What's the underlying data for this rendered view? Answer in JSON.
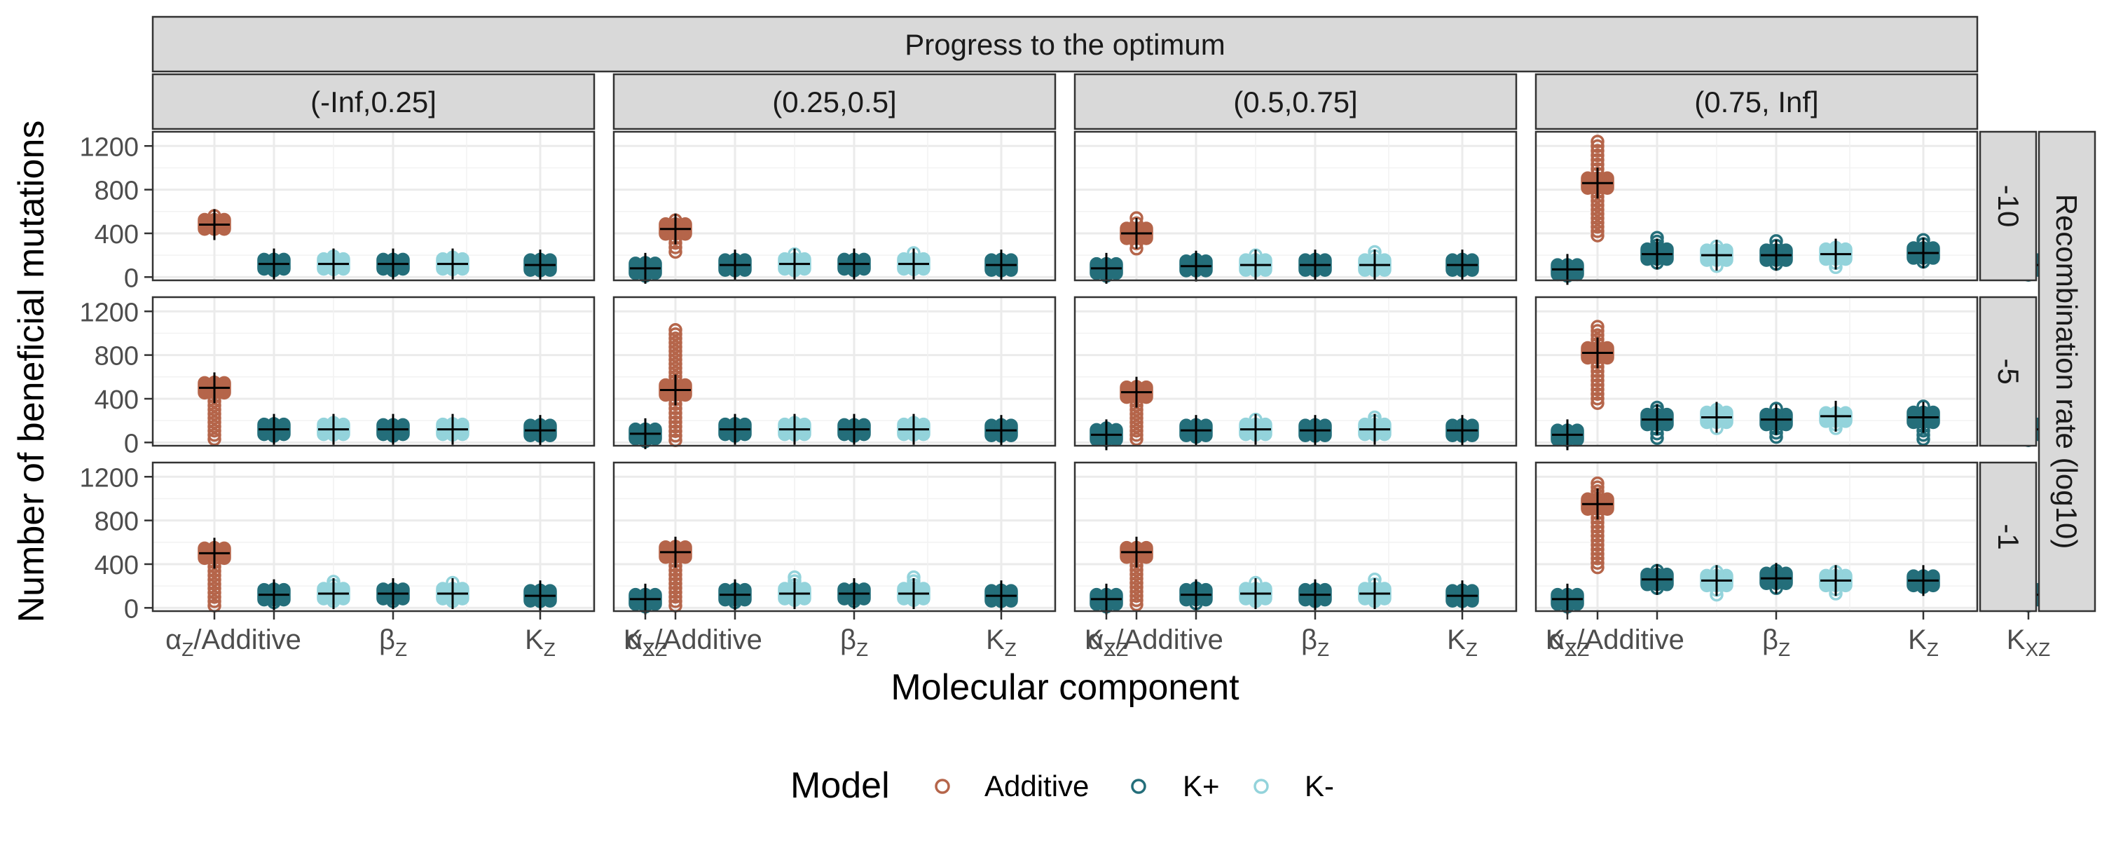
{
  "chart_data": {
    "type": "scatter",
    "title": "Progress to the optimum",
    "xlabel": "Molecular component",
    "ylabel": "Number of beneficial mutations",
    "row_strip_title": "Recombination rate (log10)",
    "column_facets": [
      "(-Inf,0.25]",
      "(0.25,0.5]",
      "(0.5,0.75]",
      "(0.75, Inf]"
    ],
    "row_facets": [
      "-10",
      "-5",
      "-1"
    ],
    "x_tick_labels": [
      {
        "base": "α",
        "sub": "Z",
        "suffix": "/Additive"
      },
      {
        "base": "β",
        "sub": "Z",
        "suffix": ""
      },
      {
        "base": "K",
        "sub": "Z",
        "suffix": ""
      },
      {
        "base": "K",
        "sub": "XZ",
        "suffix": ""
      }
    ],
    "y_ticks": [
      "0",
      "400",
      "800",
      "1200"
    ],
    "ylim": [
      -30,
      1330
    ],
    "grid": true,
    "legend": {
      "title": "Model",
      "placement": "bottom",
      "items": [
        {
          "label": "Additive",
          "color": "#B5654A"
        },
        {
          "label": "K+",
          "color": "#246E7A"
        },
        {
          "label": "K-",
          "color": "#93D3DB"
        }
      ]
    },
    "mean_marker": "+",
    "series": [
      {
        "name": "Additive",
        "color": "#B5654A",
        "slot": 0,
        "mean": [
          [
            480,
            440,
            400,
            860
          ],
          [
            500,
            480,
            460,
            820
          ],
          [
            500,
            510,
            510,
            950
          ]
        ],
        "max": [
          [
            560,
            520,
            540,
            1240
          ],
          [
            550,
            1030,
            510,
            1060
          ],
          [
            550,
            560,
            550,
            1140
          ]
        ],
        "min": [
          [
            440,
            230,
            260,
            380
          ],
          [
            30,
            20,
            30,
            360
          ],
          [
            20,
            20,
            30,
            370
          ]
        ]
      },
      {
        "name": "K+",
        "color": "#246E7A",
        "slot": 1,
        "mean": [
          [
            120,
            110,
            100,
            210
          ],
          [
            120,
            120,
            110,
            210
          ],
          [
            120,
            120,
            120,
            260
          ]
        ],
        "max": [
          [
            160,
            160,
            160,
            360
          ],
          [
            170,
            170,
            160,
            320
          ],
          [
            170,
            170,
            180,
            340
          ]
        ],
        "min": [
          [
            60,
            60,
            60,
            130
          ],
          [
            60,
            60,
            50,
            40
          ],
          [
            50,
            50,
            40,
            180
          ]
        ]
      },
      {
        "name": "K-",
        "color": "#93D3DB",
        "slot": 2,
        "mean": [
          [
            120,
            120,
            110,
            200
          ],
          [
            120,
            120,
            120,
            230
          ],
          [
            130,
            130,
            130,
            250
          ]
        ],
        "max": [
          [
            190,
            210,
            200,
            280
          ],
          [
            180,
            180,
            210,
            300
          ],
          [
            240,
            280,
            230,
            330
          ]
        ],
        "min": [
          [
            70,
            60,
            60,
            100
          ],
          [
            70,
            70,
            70,
            130
          ],
          [
            60,
            70,
            60,
            120
          ]
        ]
      },
      {
        "name": "K+",
        "color": "#246E7A",
        "slot": 3,
        "mean": [
          [
            120,
            120,
            110,
            200
          ],
          [
            120,
            120,
            110,
            210
          ],
          [
            130,
            130,
            120,
            270
          ]
        ],
        "max": [
          [
            160,
            160,
            160,
            330
          ],
          [
            160,
            160,
            160,
            310
          ],
          [
            170,
            170,
            170,
            340
          ]
        ],
        "min": [
          [
            60,
            60,
            60,
            120
          ],
          [
            60,
            60,
            60,
            50
          ],
          [
            60,
            60,
            60,
            180
          ]
        ]
      },
      {
        "name": "K-",
        "color": "#93D3DB",
        "slot": 4,
        "mean": [
          [
            120,
            120,
            110,
            210
          ],
          [
            120,
            120,
            120,
            240
          ],
          [
            130,
            130,
            130,
            250
          ]
        ],
        "max": [
          [
            180,
            220,
            230,
            270
          ],
          [
            170,
            180,
            230,
            270
          ],
          [
            230,
            280,
            260,
            330
          ]
        ],
        "min": [
          [
            70,
            70,
            60,
            90
          ],
          [
            70,
            70,
            70,
            130
          ],
          [
            60,
            70,
            60,
            130
          ]
        ]
      },
      {
        "name": "K+",
        "color": "#246E7A",
        "slot": 5,
        "mean": [
          [
            110,
            110,
            110,
            220
          ],
          [
            110,
            110,
            110,
            230
          ],
          [
            110,
            110,
            110,
            250
          ]
        ],
        "max": [
          [
            160,
            160,
            160,
            340
          ],
          [
            160,
            160,
            160,
            330
          ],
          [
            160,
            160,
            160,
            290
          ]
        ],
        "min": [
          [
            60,
            60,
            60,
            140
          ],
          [
            60,
            60,
            60,
            30
          ],
          [
            60,
            60,
            60,
            190
          ]
        ]
      },
      {
        "name": "K+",
        "color": "#246E7A",
        "slot": 6,
        "mean": [
          [
            80,
            80,
            70,
            110
          ],
          [
            80,
            70,
            70,
            120
          ],
          [
            80,
            80,
            80,
            120
          ]
        ],
        "max": [
          [
            130,
            120,
            110,
            210
          ],
          [
            120,
            130,
            110,
            200
          ],
          [
            120,
            120,
            120,
            250
          ]
        ],
        "min": [
          [
            10,
            10,
            10,
            20
          ],
          [
            10,
            20,
            20,
            20
          ],
          [
            10,
            10,
            10,
            20
          ]
        ]
      }
    ]
  }
}
